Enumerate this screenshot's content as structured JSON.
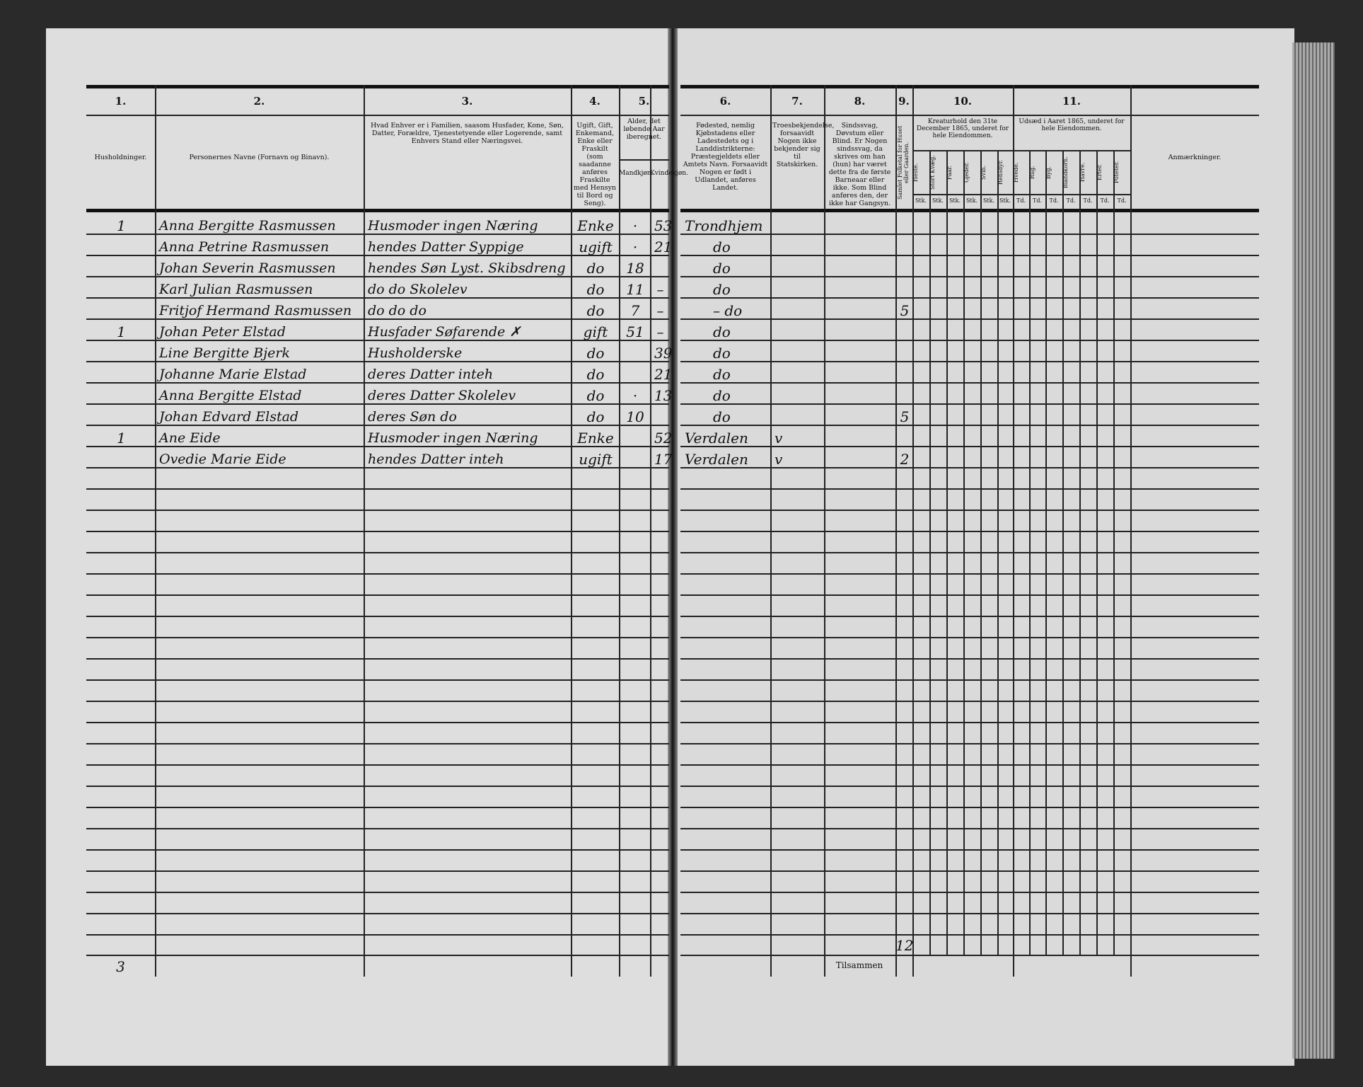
{
  "header": {
    "columns": [
      {
        "num": "1.",
        "label": "Husholdninger."
      },
      {
        "num": "2.",
        "label": "Personernes Navne (Fornavn og Binavn)."
      },
      {
        "num": "3.",
        "label": "Hvad Enhver er i Familien, saasom Husfader, Kone, Søn, Datter, Forældre, Tjenestetyende eller Logerende, samt Enhvers Stand eller Næringsvei."
      },
      {
        "num": "4.",
        "label": "Ugift, Gift, Enkemand, Enke eller Fraskilt (som saadanne anføres Fraskilte med Hensyn til Bord og Seng)."
      },
      {
        "num": "5.",
        "label": "Alder, det løbende Aar iberegnet.",
        "sub": [
          "Mandkjøn.",
          "Kvindekjøn."
        ]
      },
      {
        "num": "6.",
        "label": "Fødested, nemlig Kjøbstadens eller Ladestedets og i Landdistrikterne: Præstegjeldets eller Amtets Navn. Forsaavidt Nogen er født i Udlandet, anføres Landet."
      },
      {
        "num": "7.",
        "label": "Troesbekjendelse, forsaavidt Nogen ikke bekjender sig til Statskirken."
      },
      {
        "num": "8.",
        "label": "Sindssvag, Døvstum eller Blind. Er Nogen sindssvag, da skrives om han (hun) har været dette fra de første Barneaar eller ikke. Som Blind anføres den, der ikke har Gangsyn."
      },
      {
        "num": "9.",
        "label": "Samlet Folketal for Huset eller Gaarden."
      },
      {
        "num": "10.",
        "label": "Kreaturhold den 31te December 1865, underet for hele Eiendommen.",
        "sub": [
          "Heste.",
          "Stort Kvæg.",
          "Faar.",
          "Gjeder.",
          "Svin.",
          "Rensdyr."
        ],
        "unit": "Stk."
      },
      {
        "num": "11.",
        "label": "Udsæd i Aaret 1865, underet for hele Eiendommen.",
        "sub": [
          "Hvede.",
          "Rug.",
          "Byg.",
          "Blandkorn.",
          "Havre.",
          "Erter.",
          "Poteter."
        ],
        "unit": "Td."
      },
      {
        "num": "",
        "label": "Anmærkninger."
      }
    ]
  },
  "rows": [
    {
      "hh": "1",
      "name": "Anna Bergitte Rasmussen",
      "role": "Husmoder ingen Næring",
      "civil": "Enke",
      "male": "·",
      "female": "53",
      "birthplace": "Trondhjem",
      "faith": "",
      "total": ""
    },
    {
      "hh": "",
      "name": "Anna Petrine Rasmussen",
      "role": "hendes Datter Syppige",
      "civil": "ugift",
      "male": "·",
      "female": "21",
      "birthplace": "do",
      "faith": "",
      "total": ""
    },
    {
      "hh": "",
      "name": "Johan Severin Rasmussen",
      "role": "hendes Søn Lyst. Skibsdreng",
      "civil": "do",
      "male": "18",
      "female": "",
      "birthplace": "do",
      "faith": "",
      "total": ""
    },
    {
      "hh": "",
      "name": "Karl Julian Rasmussen",
      "role": "do   do Skolelev",
      "civil": "do",
      "male": "11",
      "female": "–",
      "birthplace": "do",
      "faith": "",
      "total": ""
    },
    {
      "hh": "",
      "name": "Fritjof Hermand Rasmussen",
      "role": "do   do   do",
      "civil": "do",
      "male": "7",
      "female": "–",
      "birthplace": "– do",
      "faith": "",
      "total": "5"
    },
    {
      "hh": "1",
      "name": "Johan Peter Elstad",
      "role": "Husfader Søfarende  ✗",
      "civil": "gift",
      "male": "51",
      "female": "–",
      "birthplace": "do",
      "faith": "",
      "total": ""
    },
    {
      "hh": "",
      "name": "Line Bergitte Bjerk",
      "role": "Husholderske",
      "civil": "do",
      "male": "",
      "female": "39",
      "birthplace": "do",
      "faith": "",
      "total": ""
    },
    {
      "hh": "",
      "name": "Johanne Marie Elstad",
      "role": "deres Datter inteh",
      "civil": "do",
      "male": "",
      "female": "21",
      "birthplace": "do",
      "faith": "",
      "total": ""
    },
    {
      "hh": "",
      "name": "Anna Bergitte Elstad",
      "role": "deres Datter Skolelev",
      "civil": "do",
      "male": "·",
      "female": "13",
      "birthplace": "do",
      "faith": "",
      "total": ""
    },
    {
      "hh": "",
      "name": "Johan Edvard Elstad",
      "role": "deres Søn   do",
      "civil": "do",
      "male": "10",
      "female": "",
      "birthplace": "do",
      "faith": "",
      "total": "5"
    },
    {
      "hh": "1",
      "name": "Ane Eide",
      "role": "Husmoder ingen Næring",
      "civil": "Enke",
      "male": "",
      "female": "52",
      "birthplace": "Verdalen",
      "faith": "v",
      "total": ""
    },
    {
      "hh": "",
      "name": "Ovedie Marie Eide",
      "role": "hendes Datter inteh",
      "civil": "ugift",
      "male": "",
      "female": "17",
      "birthplace": "Verdalen",
      "faith": "v",
      "total": "2"
    }
  ],
  "footer": {
    "households_total": "3",
    "sum_label": "Tilsammen",
    "persons_total": "12"
  },
  "colors": {
    "paper": "#dedede",
    "ink": "#111111"
  }
}
